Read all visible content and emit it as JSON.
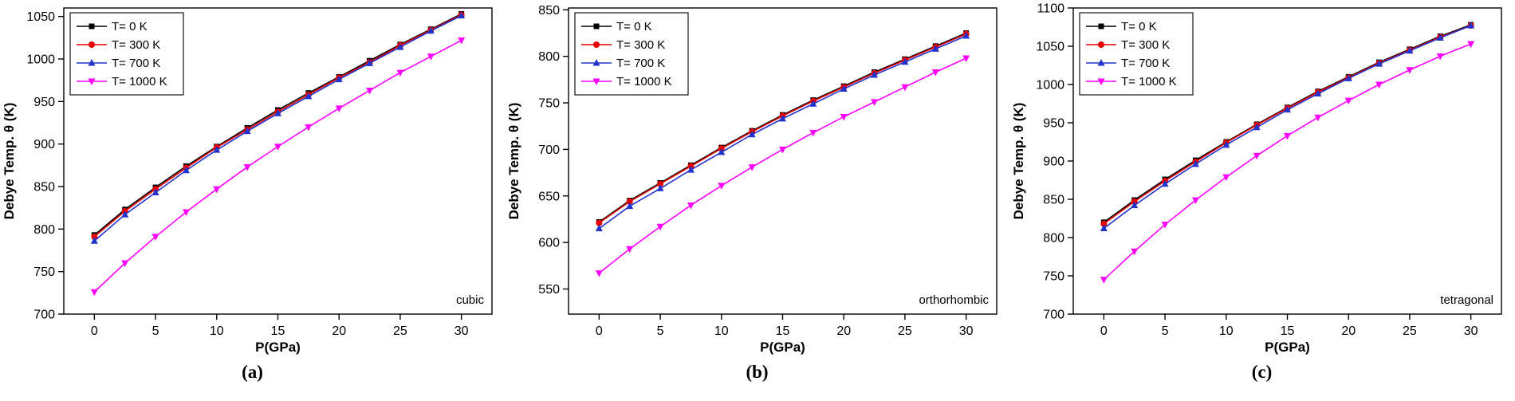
{
  "figure": {
    "background": "#ffffff"
  },
  "legend_labels": [
    "T= 0 K",
    "T= 300 K",
    "T= 700 K",
    "T= 1000 K"
  ],
  "colors": {
    "t0": "#000000",
    "t300": "#e60000",
    "t700": "#2233cc",
    "t1000": "#ff00ff"
  },
  "chart_data": [
    {
      "type": "line",
      "panel_label": "(a)",
      "annotation": "cubic",
      "xlabel": "P(GPa)",
      "ylabel": "Debye Temp. θ (K)",
      "xlim": [
        -2.5,
        32.5
      ],
      "ylim": [
        700,
        1060
      ],
      "xticks": [
        0,
        5,
        10,
        15,
        20,
        25,
        30
      ],
      "yticks": [
        700,
        750,
        800,
        850,
        900,
        950,
        1000,
        1050
      ],
      "legend_position": "top-left",
      "grid": false,
      "x": [
        0,
        2.5,
        5,
        7.5,
        10,
        12.5,
        15,
        17.5,
        20,
        22.5,
        25,
        27.5,
        30
      ],
      "series": [
        {
          "name": "T= 0 K",
          "color": "#000000",
          "marker": "square",
          "values": [
            793,
            823,
            849,
            874,
            897,
            919,
            940,
            960,
            979,
            998,
            1017,
            1035,
            1053
          ]
        },
        {
          "name": "T= 300 K",
          "color": "#e60000",
          "marker": "circle",
          "values": [
            791,
            821,
            847,
            872,
            896,
            917,
            938,
            958,
            978,
            996,
            1016,
            1034,
            1052
          ]
        },
        {
          "name": "T= 700 K",
          "color": "#2233cc",
          "marker": "triangle-up",
          "values": [
            786,
            817,
            843,
            869,
            893,
            915,
            936,
            956,
            976,
            995,
            1014,
            1033,
            1051
          ]
        },
        {
          "name": "T= 1000 K",
          "color": "#ff00ff",
          "marker": "triangle-down",
          "values": [
            726,
            760,
            791,
            820,
            847,
            873,
            897,
            920,
            942,
            963,
            984,
            1003,
            1022
          ]
        }
      ]
    },
    {
      "type": "line",
      "panel_label": "(b)",
      "annotation": "orthorhombic",
      "xlabel": "P(GPa)",
      "ylabel": "Debye Temp. θ (K)",
      "xlim": [
        -2.5,
        32.5
      ],
      "ylim": [
        523,
        852
      ],
      "xticks": [
        0,
        5,
        10,
        15,
        20,
        25,
        30
      ],
      "yticks": [
        550,
        600,
        650,
        700,
        750,
        800,
        850
      ],
      "legend_position": "top-left",
      "grid": false,
      "x": [
        0,
        2.5,
        5,
        7.5,
        10,
        12.5,
        15,
        17.5,
        20,
        22.5,
        25,
        27.5,
        30
      ],
      "series": [
        {
          "name": "T= 0 K",
          "color": "#000000",
          "marker": "square",
          "values": [
            622,
            645,
            664,
            683,
            702,
            720,
            737,
            753,
            768,
            783,
            797,
            811,
            825
          ]
        },
        {
          "name": "T= 300 K",
          "color": "#e60000",
          "marker": "circle",
          "values": [
            621,
            644,
            663,
            682,
            701,
            719,
            736,
            752,
            767,
            782,
            796,
            810,
            824
          ]
        },
        {
          "name": "T= 700 K",
          "color": "#2233cc",
          "marker": "triangle-up",
          "values": [
            615,
            639,
            658,
            678,
            697,
            716,
            733,
            749,
            765,
            780,
            794,
            808,
            822
          ]
        },
        {
          "name": "T= 1000 K",
          "color": "#ff00ff",
          "marker": "triangle-down",
          "values": [
            567,
            593,
            617,
            640,
            661,
            681,
            700,
            718,
            735,
            751,
            767,
            783,
            798
          ]
        }
      ]
    },
    {
      "type": "line",
      "panel_label": "(c)",
      "annotation": "tetragonal",
      "xlabel": "P(GPa)",
      "ylabel": "Debye Temp. θ (K)",
      "xlim": [
        -2.5,
        32.5
      ],
      "ylim": [
        700,
        1100
      ],
      "xticks": [
        0,
        5,
        10,
        15,
        20,
        25,
        30
      ],
      "yticks": [
        700,
        750,
        800,
        850,
        900,
        950,
        1000,
        1050,
        1100
      ],
      "legend_position": "top-left",
      "grid": false,
      "x": [
        0,
        2.5,
        5,
        7.5,
        10,
        12.5,
        15,
        17.5,
        20,
        22.5,
        25,
        27.5,
        30
      ],
      "series": [
        {
          "name": "T= 0 K",
          "color": "#000000",
          "marker": "square",
          "values": [
            820,
            849,
            876,
            901,
            925,
            948,
            970,
            991,
            1010,
            1029,
            1046,
            1063,
            1078
          ]
        },
        {
          "name": "T= 300 K",
          "color": "#e60000",
          "marker": "circle",
          "values": [
            818,
            847,
            874,
            899,
            924,
            947,
            969,
            990,
            1009,
            1028,
            1045,
            1062,
            1077
          ]
        },
        {
          "name": "T= 700 K",
          "color": "#2233cc",
          "marker": "triangle-up",
          "values": [
            812,
            842,
            870,
            896,
            921,
            944,
            967,
            988,
            1008,
            1027,
            1044,
            1061,
            1077
          ]
        },
        {
          "name": "T= 1000 K",
          "color": "#ff00ff",
          "marker": "triangle-down",
          "values": [
            745,
            782,
            817,
            849,
            879,
            907,
            933,
            957,
            979,
            1000,
            1019,
            1037,
            1053
          ]
        }
      ]
    }
  ]
}
